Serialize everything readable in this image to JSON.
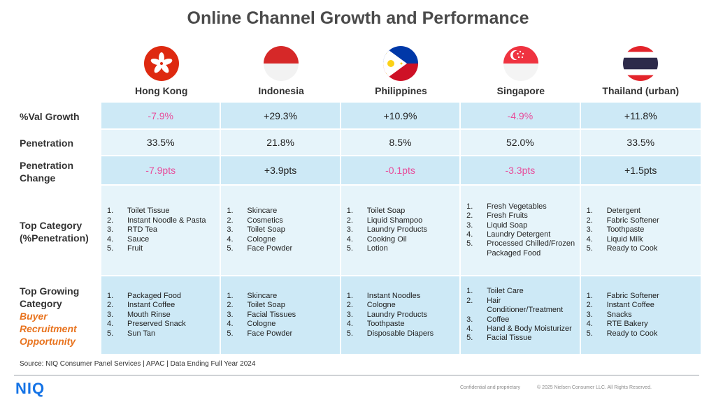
{
  "title": "Online Channel Growth and Performance",
  "countries": [
    {
      "name": "Hong Kong",
      "flag_icon": "hong-kong-flag-icon"
    },
    {
      "name": "Indonesia",
      "flag_icon": "indonesia-flag-icon"
    },
    {
      "name": "Philippines",
      "flag_icon": "philippines-flag-icon"
    },
    {
      "name": "Singapore",
      "flag_icon": "singapore-flag-icon"
    },
    {
      "name": "Thailand (urban)",
      "flag_icon": "thailand-flag-icon"
    }
  ],
  "row_labels": {
    "val_growth": "%Val Growth",
    "penetration": "Penetration",
    "pen_change_1": "Penetration",
    "pen_change_2": "Change",
    "top_cat_1": "Top Category",
    "top_cat_2": "(%Penetration)",
    "top_grow_1": "Top Growing",
    "top_grow_2": "Category",
    "top_grow_3": "Buyer",
    "top_grow_4": "Recruitment",
    "top_grow_5": "Opportunity"
  },
  "val_growth": [
    "-7.9%",
    "+29.3%",
    "+10.9%",
    "-4.9%",
    "+11.8%"
  ],
  "penetration": [
    "33.5%",
    "21.8%",
    "8.5%",
    "52.0%",
    "33.5%"
  ],
  "penetration_change": [
    "-7.9pts",
    "+3.9pts",
    "-0.1pts",
    "-3.3pts",
    "+1.5pts"
  ],
  "top_category": [
    [
      {
        "n": "1.",
        "t": "Toilet Tissue"
      },
      {
        "n": "2.",
        "t": "Instant Noodle & Pasta"
      },
      {
        "n": "3.",
        "t": "RTD Tea"
      },
      {
        "n": "4.",
        "t": "Sauce"
      },
      {
        "n": "5.",
        "t": "Fruit"
      }
    ],
    [
      {
        "n": "1.",
        "t": "Skincare"
      },
      {
        "n": "2.",
        "t": "Cosmetics"
      },
      {
        "n": "3.",
        "t": "Toilet Soap"
      },
      {
        "n": "4.",
        "t": "Cologne"
      },
      {
        "n": "5.",
        "t": "Face Powder"
      }
    ],
    [
      {
        "n": "1.",
        "t": "Toilet Soap"
      },
      {
        "n": "2.",
        "t": "Liquid Shampoo"
      },
      {
        "n": "3.",
        "t": "Laundry Products"
      },
      {
        "n": "4.",
        "t": "Cooking Oil"
      },
      {
        "n": "5.",
        "t": "Lotion"
      }
    ],
    [
      {
        "n": "1.",
        "t": "Fresh Vegetables"
      },
      {
        "n": "2.",
        "t": "Fresh Fruits"
      },
      {
        "n": "3.",
        "t": "Liquid Soap"
      },
      {
        "n": "4.",
        "t": "Laundry Detergent"
      },
      {
        "n": "5.",
        "t": "Processed Chilled/Frozen Packaged Food"
      }
    ],
    [
      {
        "n": "1.",
        "t": "Detergent"
      },
      {
        "n": "2.",
        "t": "Fabric Softener"
      },
      {
        "n": "3.",
        "t": "Toothpaste"
      },
      {
        "n": "4.",
        "t": "Liquid Milk"
      },
      {
        "n": "5.",
        "t": "Ready to Cook"
      }
    ]
  ],
  "top_growing": [
    [
      {
        "n": "1.",
        "t": "Packaged Food"
      },
      {
        "n": "2.",
        "t": "Instant Coffee"
      },
      {
        "n": "3.",
        "t": "Mouth Rinse"
      },
      {
        "n": "4.",
        "t": "Preserved Snack"
      },
      {
        "n": "5.",
        "t": "Sun Tan"
      }
    ],
    [
      {
        "n": "1.",
        "t": "Skincare"
      },
      {
        "n": "2.",
        "t": "Toilet Soap"
      },
      {
        "n": "3.",
        "t": "Facial Tissues"
      },
      {
        "n": "4.",
        "t": "Cologne"
      },
      {
        "n": "5.",
        "t": "Face Powder"
      }
    ],
    [
      {
        "n": "1.",
        "t": "Instant Noodles"
      },
      {
        "n": "2.",
        "t": "Cologne"
      },
      {
        "n": "3.",
        "t": "Laundry Products"
      },
      {
        "n": "4.",
        "t": "Toothpaste"
      },
      {
        "n": "5.",
        "t": "Disposable Diapers"
      }
    ],
    [
      {
        "n": "1.",
        "t": "Toilet Care"
      },
      {
        "n": "2.",
        "t": "Hair Conditioner/Treatment"
      },
      {
        "n": "3.",
        "t": "Coffee"
      },
      {
        "n": "4.",
        "t": "Hand & Body Moisturizer"
      },
      {
        "n": "5.",
        "t": "Facial Tissue"
      }
    ],
    [
      {
        "n": "1.",
        "t": "Fabric Softener"
      },
      {
        "n": "2.",
        "t": "Instant Coffee"
      },
      {
        "n": "3.",
        "t": "Snacks"
      },
      {
        "n": "4.",
        "t": "RTE Bakery"
      },
      {
        "n": "5.",
        "t": "Ready to Cook"
      }
    ]
  ],
  "source": "Source: NIQ Consumer Panel Services | APAC | Data Ending Full Year 2024",
  "footer": {
    "logo": "NIQ",
    "confidential": "Confidential and proprietary",
    "copyright": "© 2025 Nielsen Consumer LLC. All Rights Reserved."
  },
  "colors": {
    "band_dark": "#cde9f6",
    "band_light": "#e6f4fa",
    "negative": "#e84c9a",
    "accent_orange": "#e8731e",
    "brand_blue": "#1473e6"
  }
}
